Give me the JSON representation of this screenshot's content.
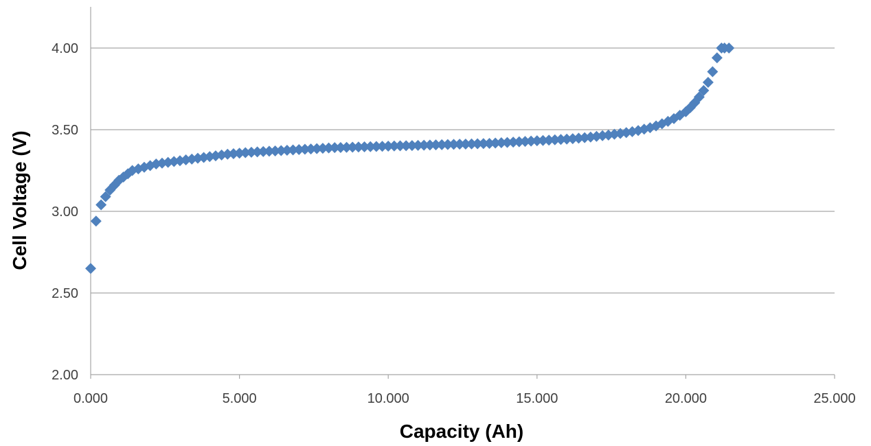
{
  "colors": {
    "marker": "#4F81BD",
    "grid": "#A6A6A6",
    "axis": "#A6A6A6",
    "tick_text": "#404040",
    "title_text": "#000000"
  },
  "chart_data": {
    "type": "scatter",
    "title": "",
    "xlabel": "Capacity (Ah)",
    "ylabel": "Cell Voltage (V)",
    "xlim": [
      0,
      25
    ],
    "ylim": [
      2.0,
      4.2
    ],
    "x_ticks": [
      0,
      5,
      10,
      15,
      20,
      25
    ],
    "x_tick_labels": [
      "0.000",
      "5.000",
      "10.000",
      "15.000",
      "20.000",
      "25.000"
    ],
    "y_ticks": [
      2.0,
      2.5,
      3.0,
      3.5,
      4.0
    ],
    "y_tick_labels": [
      "2.00",
      "2.50",
      "3.00",
      "3.50",
      "4.00"
    ],
    "grid": "horizontal",
    "legend": "none",
    "marker": "diamond",
    "series": [
      {
        "x": [
          0.0,
          0.18,
          0.35,
          0.5,
          0.65,
          0.8,
          0.95,
          1.1,
          1.25,
          1.4,
          1.6,
          1.8,
          2.0,
          2.2,
          2.4,
          2.6,
          2.8,
          3.0,
          3.2,
          3.4,
          3.6,
          3.8,
          4.0,
          4.2,
          4.4,
          4.6,
          4.8,
          5.0,
          5.2,
          5.4,
          5.6,
          5.8,
          6.0,
          6.2,
          6.4,
          6.6,
          6.8,
          7.0,
          7.2,
          7.4,
          7.6,
          7.8,
          8.0,
          8.2,
          8.4,
          8.6,
          8.8,
          9.0,
          9.2,
          9.4,
          9.6,
          9.8,
          10.0,
          10.2,
          10.4,
          10.6,
          10.8,
          11.0,
          11.2,
          11.4,
          11.6,
          11.8,
          12.0,
          12.2,
          12.4,
          12.6,
          12.8,
          13.0,
          13.2,
          13.4,
          13.6,
          13.8,
          14.0,
          14.2,
          14.4,
          14.6,
          14.8,
          15.0,
          15.2,
          15.4,
          15.6,
          15.8,
          16.0,
          16.2,
          16.4,
          16.6,
          16.8,
          17.0,
          17.2,
          17.4,
          17.6,
          17.8,
          18.0,
          18.2,
          18.4,
          18.6,
          18.8,
          19.0,
          19.2,
          19.4,
          19.6,
          19.8,
          20.0,
          20.15,
          20.3,
          20.45,
          20.6,
          20.75,
          20.9,
          21.05,
          21.2,
          21.3,
          21.45
        ],
        "y": [
          2.65,
          2.94,
          3.04,
          3.09,
          3.13,
          3.16,
          3.19,
          3.21,
          3.23,
          3.25,
          3.26,
          3.27,
          3.28,
          3.29,
          3.295,
          3.3,
          3.305,
          3.31,
          3.315,
          3.32,
          3.325,
          3.33,
          3.335,
          3.34,
          3.345,
          3.35,
          3.353,
          3.356,
          3.359,
          3.362,
          3.364,
          3.366,
          3.368,
          3.37,
          3.372,
          3.374,
          3.376,
          3.378,
          3.38,
          3.382,
          3.384,
          3.386,
          3.388,
          3.39,
          3.391,
          3.392,
          3.393,
          3.394,
          3.395,
          3.396,
          3.397,
          3.398,
          3.399,
          3.4,
          3.401,
          3.402,
          3.403,
          3.404,
          3.405,
          3.406,
          3.407,
          3.408,
          3.409,
          3.41,
          3.411,
          3.412,
          3.413,
          3.414,
          3.415,
          3.416,
          3.418,
          3.42,
          3.422,
          3.424,
          3.426,
          3.428,
          3.43,
          3.432,
          3.434,
          3.436,
          3.438,
          3.44,
          3.442,
          3.445,
          3.448,
          3.451,
          3.455,
          3.459,
          3.463,
          3.467,
          3.472,
          3.477,
          3.482,
          3.488,
          3.495,
          3.503,
          3.512,
          3.523,
          3.536,
          3.551,
          3.568,
          3.588,
          3.61,
          3.635,
          3.665,
          3.7,
          3.74,
          3.79,
          3.855,
          3.94,
          4.0,
          4.0,
          4.0
        ]
      }
    ]
  }
}
